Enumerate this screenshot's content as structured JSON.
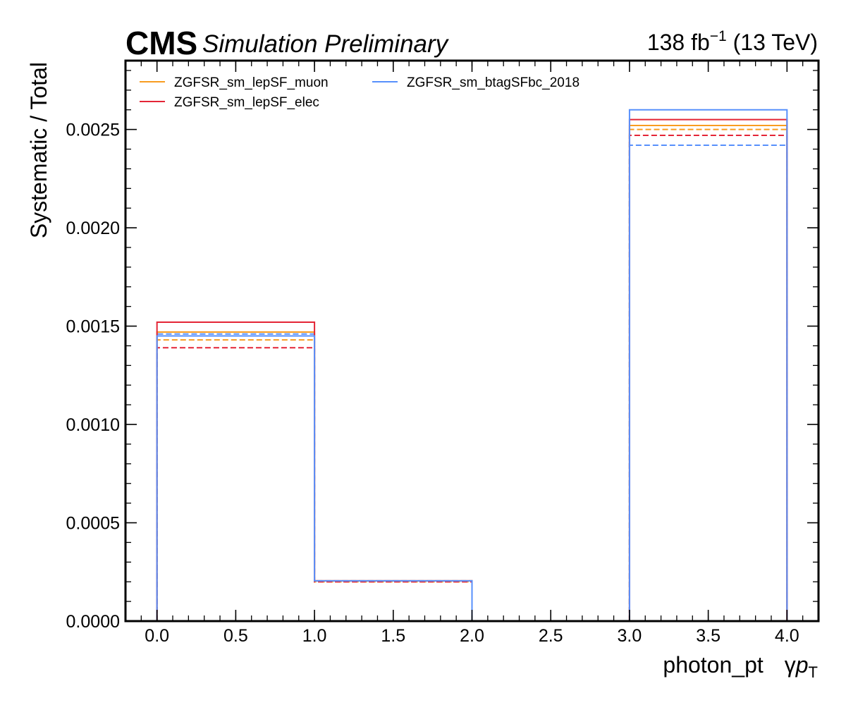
{
  "header": {
    "experiment": "CMS",
    "status": "Simulation Preliminary",
    "lumi_value": "138 fb",
    "lumi_exp": "−1",
    "energy": " (13 TeV)"
  },
  "chart_data": {
    "type": "step",
    "xlabel": "photon_pt",
    "xlabel_symbol_prefix": "γ",
    "xlabel_symbol_p": "p",
    "xlabel_symbol_sub": "T",
    "ylabel": "Systematic / Total",
    "xlim": [
      -0.2,
      4.2
    ],
    "ylim": [
      0,
      0.00285
    ],
    "bin_edges": [
      0,
      1,
      2,
      3,
      4
    ],
    "x_ticks": [
      0.0,
      0.5,
      1.0,
      1.5,
      2.0,
      2.5,
      3.0,
      3.5,
      4.0
    ],
    "x_tick_labels": [
      "0.0",
      "0.5",
      "1.0",
      "1.5",
      "2.0",
      "2.5",
      "3.0",
      "3.5",
      "4.0"
    ],
    "y_ticks": [
      0,
      0.0005,
      0.001,
      0.0015,
      0.002,
      0.0025
    ],
    "y_tick_labels": [
      "0.0000",
      "0.0005",
      "0.0010",
      "0.0015",
      "0.0020",
      "0.0025"
    ],
    "legend_position": "top-left",
    "series": [
      {
        "name": "ZGFSR_sm_lepSF_muon",
        "color": "#f89c20",
        "up": [
          0.00147,
          0.000205,
          0.0,
          0.00252
        ],
        "down": [
          0.00143,
          0.0002,
          0.0,
          0.0025
        ]
      },
      {
        "name": "ZGFSR_sm_lepSF_elec",
        "color": "#e42536",
        "up": [
          0.00152,
          0.000205,
          0.0,
          0.00255
        ],
        "down": [
          0.00139,
          0.0002,
          0.0,
          0.00247
        ]
      },
      {
        "name": "ZGFSR_sm_btagSFbc_2018",
        "color": "#5790fc",
        "up": [
          0.00145,
          0.000205,
          0.0,
          0.0026
        ],
        "down": [
          0.00146,
          0.000205,
          0.0,
          0.00242
        ]
      }
    ]
  }
}
